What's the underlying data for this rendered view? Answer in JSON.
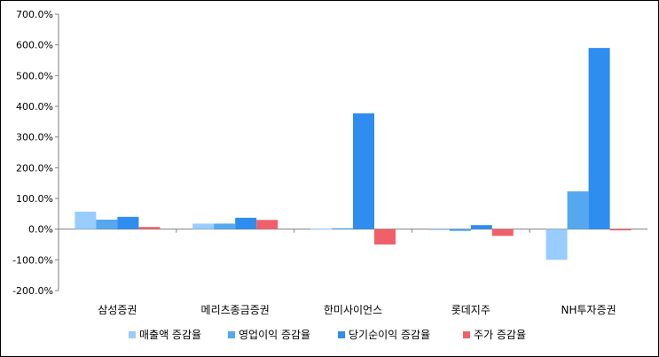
{
  "chart_data": {
    "type": "bar",
    "categories": [
      "삼성증권",
      "메리츠종금증권",
      "한미사이언스",
      "롯데지주",
      "NH투자증권"
    ],
    "series": [
      {
        "name": "매출액 증감율",
        "color": "#99ccff",
        "values": [
          57,
          18,
          2,
          -2,
          -100
        ]
      },
      {
        "name": "영업이익 증감율",
        "color": "#55a8f0",
        "values": [
          31,
          18,
          3,
          -6,
          123
        ]
      },
      {
        "name": "당기순이익 증감율",
        "color": "#2e8def",
        "values": [
          40,
          37,
          377,
          13,
          590
        ]
      },
      {
        "name": "주가 증감율",
        "color": "#f0606a",
        "values": [
          7,
          30,
          -50,
          -22,
          -4
        ]
      }
    ],
    "y_ticks": [
      "700.0%",
      "600.0%",
      "500.0%",
      "400.0%",
      "300.0%",
      "200.0%",
      "100.0%",
      "0.0%",
      "-100.0%",
      "-200.0%"
    ],
    "ylim": [
      -200,
      700
    ],
    "ytick_step": 100,
    "grid": false,
    "legend_position": "bottom"
  }
}
